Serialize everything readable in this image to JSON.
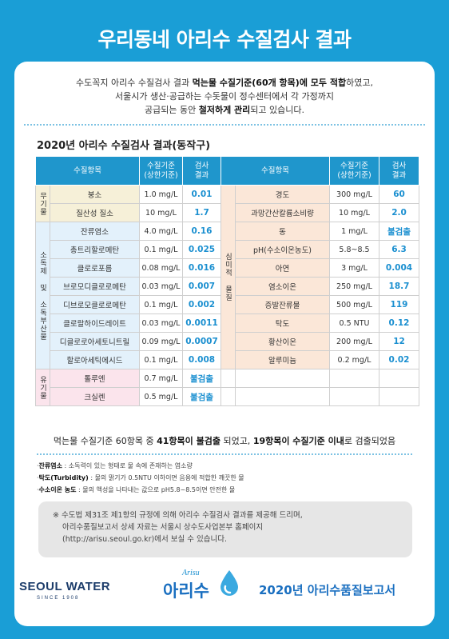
{
  "title": "우리동네 아리수 수질검사 결과",
  "intro": {
    "line1_a": "수도꼭지 아리수 수질검사 결과 ",
    "line1_b": "먹는물 수질기준(60개 항목)에 모두 적합",
    "line1_c": "하였고,",
    "line2": "서울시가 생산·공급하는 수돗물이 정수센터에서 각 가정까지",
    "line3_a": "공급되는 동안 ",
    "line3_b": "철저하게 관리",
    "line3_c": "되고 있습니다."
  },
  "subtitle": "2020년 아리수 수질검사 결과(동작구)",
  "table": {
    "headers": {
      "item": "수질항목",
      "standard": "수질기준",
      "standard_sub": "(상한기준)",
      "result": "검사",
      "result_sub": "결과"
    },
    "groups": {
      "inorganic": "무기물",
      "disinfectant": "소독제 및 소독부산물",
      "organic": "유기물",
      "aesthetic": "심미적 물질"
    },
    "left_rows": [
      {
        "item": "붕소",
        "standard": "1.0 mg/L",
        "result": "0.01"
      },
      {
        "item": "질산성 질소",
        "standard": "10 mg/L",
        "result": "1.7"
      },
      {
        "item": "잔류염소",
        "standard": "4.0 mg/L",
        "result": "0.16"
      },
      {
        "item": "총트리할로메탄",
        "standard": "0.1 mg/L",
        "result": "0.025"
      },
      {
        "item": "클로로포름",
        "standard": "0.08 mg/L",
        "result": "0.016"
      },
      {
        "item": "브로모디클로로메탄",
        "standard": "0.03 mg/L",
        "result": "0.007"
      },
      {
        "item": "디브로모클로로메탄",
        "standard": "0.1 mg/L",
        "result": "0.002"
      },
      {
        "item": "클로랄하이드레이트",
        "standard": "0.03 mg/L",
        "result": "0.0011"
      },
      {
        "item": "디클로로아세토니트릴",
        "standard": "0.09 mg/L",
        "result": "0.0007"
      },
      {
        "item": "할로아세틱에시드",
        "standard": "0.1 mg/L",
        "result": "0.008"
      },
      {
        "item": "톨루엔",
        "standard": "0.7 mg/L",
        "result": "불검출"
      },
      {
        "item": "크실렌",
        "standard": "0.5 mg/L",
        "result": "불검출"
      }
    ],
    "right_rows": [
      {
        "item": "경도",
        "standard": "300 mg/L",
        "result": "60"
      },
      {
        "item": "과망간산칼륨소비량",
        "standard": "10 mg/L",
        "result": "2.0"
      },
      {
        "item": "동",
        "standard": "1 mg/L",
        "result": "불검출"
      },
      {
        "item": "pH(수소이온농도)",
        "standard": "5.8~8.5",
        "result": "6.3"
      },
      {
        "item": "아연",
        "standard": "3 mg/L",
        "result": "0.004"
      },
      {
        "item": "염소이온",
        "standard": "250 mg/L",
        "result": "18.7"
      },
      {
        "item": "증발잔류물",
        "standard": "500 mg/L",
        "result": "119"
      },
      {
        "item": "탁도",
        "standard": "0.5 NTU",
        "result": "0.12"
      },
      {
        "item": "황산이온",
        "standard": "200 mg/L",
        "result": "12"
      },
      {
        "item": "알루미늄",
        "standard": "0.2 mg/L",
        "result": "0.02"
      }
    ]
  },
  "summary": {
    "a": "먹는물 수질기준 60항목 중 ",
    "b": "41항목이 불검출",
    "c": " 되었고, ",
    "d": "19항목이 수질기준 이내",
    "e": "로 검출되었음"
  },
  "notes": [
    {
      "term": "잔류염소",
      "text": " : 소독력이 있는 형태로 물 속에 존재하는 염소량"
    },
    {
      "term": "탁도(Turbidity)",
      "text": " : 물의 맑기가 0.5NTU 이하이면 음용에 적합한 깨끗한 물"
    },
    {
      "term": "수소이온 농도",
      "text": " : 물의 액성을 나타내는 값으로 pH5.8~8.5이면 안전한 물"
    }
  ],
  "info_box": {
    "line1": "※ 수도법 제31조 제1항의 규정에 의해 아리수 수질검사 결과를 제공해 드리며,",
    "line2": "아리수품질보고서 상세 자료는 서울시 상수도사업본부 홈페이지",
    "line3": "(http://arisu.seoul.go.kr)에서 보실 수 있습니다."
  },
  "footer": {
    "logo_seoul_water": "SEOUL WATER",
    "logo_since": "SINCE 1908",
    "logo_arisu_en": "Arisu",
    "logo_arisu": "아리수",
    "report": "2020년 아리수품질보고서"
  }
}
